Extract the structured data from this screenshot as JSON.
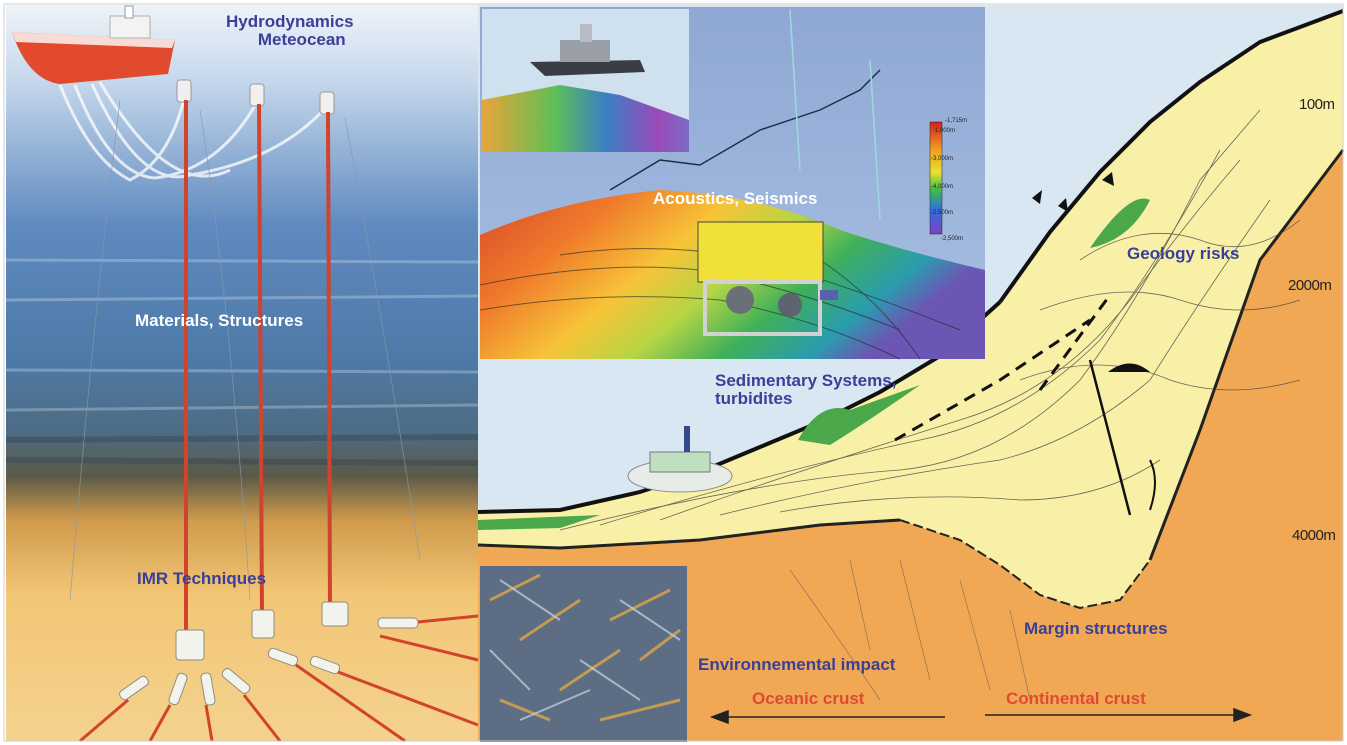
{
  "labels": {
    "hydro_line1": "Hydrodynamics",
    "hydro_line2": "Meteocean",
    "materials": "Materials, Structures",
    "imr": "IMR Techniques",
    "acoustics": "Acoustics, Seismics",
    "geology": "Geology risks",
    "sedimentary_line1": "Sedimentary Systems,",
    "sedimentary_line2": "turbidites",
    "margin": "Margin structures",
    "environment": "Environnemental impact",
    "oceanic": "Oceanic crust",
    "continental": "Continental crust"
  },
  "depths": {
    "d100": "100m",
    "d2000": "2000m",
    "d4000": "4000m"
  },
  "colorbar": {
    "top": "-1,715m",
    "t2": "-1,000m",
    "t3": "-3,000m",
    "t4": "-4,000m",
    "t5": "-2,500m",
    "bottom": "-2,500m"
  },
  "colors": {
    "label_blue": "#3a3f9a",
    "label_red": "#e04a30",
    "label_white": "#ffffff",
    "sediment": "#f7f0a6",
    "crust": "#f0a855",
    "water_left_top": "#c9dcef",
    "water_left_bottom": "#f0c070"
  }
}
